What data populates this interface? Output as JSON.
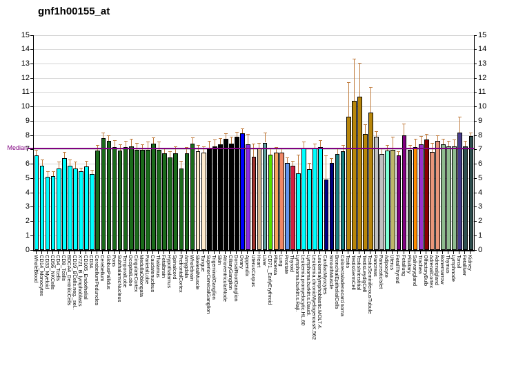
{
  "title": "gnf1h00155_at",
  "median_label": "Median",
  "chart_data": {
    "type": "bar",
    "title": "gnf1h00155_at",
    "xlabel": "",
    "ylabel": "",
    "ylim": [
      0,
      15
    ],
    "y_ticks": [
      0,
      1,
      2,
      3,
      4,
      5,
      6,
      7,
      8,
      9,
      10,
      11,
      12,
      13,
      14,
      15
    ],
    "grid": true,
    "legend": "none",
    "median": 7.1,
    "median_color": "#800080",
    "error_bar_color": "#c07c3e",
    "axis_color": "#000000",
    "grid_color": "#d4d4d4",
    "categories": [
      "WholeBlood",
      "CD14_Monocytes",
      "CD33_Myeloid",
      "CD56_NKCells",
      "CD4_Tcells",
      "CD8_Tcells",
      "BDCA4_DentriticCells",
      "CD19_BCells.neg._sel..",
      "X721_B_lymphoblasts",
      "CD105_Endothelial",
      "CD34.",
      "CerebellumPeduncles",
      "Cerebellum",
      "GlobusPallidus",
      "Pons",
      "SubthalamicNucleus",
      "TemporalLobe",
      "OccipitalLobe",
      "CingulateCortex",
      "MedullaOblongata",
      "ParietalLobe",
      "Caudatenucleus",
      "Thalamus",
      "Fetalbrain",
      "Hypothalamus",
      "Spinalcord",
      "PrefrontalCortex",
      "Amygdala",
      "Wholebrain",
      "SkeletalMuscle",
      "Tongue",
      "SuperiorCervicalGanglion",
      "TrigeminalGanglion",
      "Skin",
      "AtrioventricularNode",
      "CiliaryGanglion",
      "DorsalRootGanglion",
      "Ovary",
      "Appendix",
      "UterusCorpus",
      "Heart",
      "Liver",
      "CD71._EarlyErythroid",
      "Placenta",
      "Lung",
      "Prostate",
      "Thyroid",
      "Lymphoma.burkitt.s.Raji.",
      "Leukemia.promyelocytic.HL.60",
      "Lymphoma.burkitt.s.Daudi.",
      "Leukemia.chronicMyelogenousK.562",
      "Leukemialymphoblastic.MOLT.4.",
      "CardiacMyocytes",
      "SmoothMuscle",
      "BronchialEpithelialCells",
      "Colorectaladenocarcinoma",
      "Testis",
      "TestisGermCell",
      "TestisInterstitial",
      "TestisLeydigCell",
      "TestisSeminiferousTubule",
      "Pancreas",
      "PancreaticIslet",
      "Adipocyte",
      "Uterus",
      "FetalThyroid",
      "Fetallung",
      "Pituitary",
      "Salivarygland",
      "Trachea",
      "OlfactoryBulb",
      "AdrenalCortex",
      "Adrenalgland",
      "Bonemarrow",
      "Thymus",
      "Lymphnode",
      "Tonsil",
      "Fetalliver",
      "Kidney"
    ],
    "values": [
      6.6,
      5.9,
      5.1,
      5.15,
      5.7,
      6.4,
      5.9,
      5.7,
      5.5,
      5.85,
      5.3,
      6.95,
      7.8,
      7.6,
      7.2,
      6.95,
      7.2,
      7.25,
      7.0,
      7.0,
      7.0,
      7.45,
      7.0,
      6.75,
      6.45,
      6.75,
      5.7,
      6.75,
      7.45,
      6.9,
      6.8,
      7.15,
      7.25,
      7.4,
      7.75,
      7.45,
      7.9,
      8.15,
      7.4,
      6.5,
      7.1,
      7.5,
      6.65,
      6.8,
      6.8,
      6.1,
      5.9,
      5.35,
      7.15,
      5.65,
      7.1,
      7.2,
      4.9,
      6.1,
      6.7,
      6.9,
      9.3,
      10.4,
      10.7,
      8.1,
      9.6,
      7.9,
      6.7,
      6.95,
      7.0,
      6.6,
      8.0,
      7.0,
      7.2,
      7.4,
      7.7,
      6.85,
      7.6,
      7.4,
      7.25,
      7.25,
      8.2,
      7.25,
      7.95
    ],
    "errors_high": [
      7.0,
      6.3,
      5.5,
      5.5,
      6.15,
      6.85,
      6.3,
      6.15,
      5.75,
      6.2,
      5.6,
      7.35,
      8.2,
      8.0,
      7.65,
      7.4,
      7.6,
      7.75,
      7.5,
      7.4,
      7.55,
      7.85,
      7.55,
      7.15,
      6.9,
      7.25,
      6.2,
      7.2,
      7.85,
      7.35,
      7.25,
      7.6,
      7.7,
      7.8,
      8.15,
      7.9,
      8.25,
      8.5,
      8.1,
      7.45,
      7.5,
      8.2,
      7.1,
      7.2,
      7.15,
      6.45,
      6.2,
      6.65,
      7.55,
      6.1,
      7.45,
      7.65,
      6.6,
      6.4,
      7.1,
      7.35,
      11.7,
      13.35,
      13.05,
      8.8,
      11.4,
      8.3,
      7.1,
      7.35,
      7.9,
      6.9,
      8.85,
      7.35,
      7.75,
      7.95,
      8.1,
      7.5,
      8.0,
      7.75,
      7.6,
      7.7,
      9.3,
      7.6,
      8.2
    ],
    "colors": [
      "#00FFFF",
      "#00FFFF",
      "#00FFFF",
      "#00FFFF",
      "#00FFFF",
      "#00FFFF",
      "#00FFFF",
      "#00FFFF",
      "#00FFFF",
      "#00FFFF",
      "#00FFFF",
      "#1B6B1B",
      "#1B6B1B",
      "#1B6B1B",
      "#1B6B1B",
      "#1B6B1B",
      "#1B6B1B",
      "#1B6B1B",
      "#1B6B1B",
      "#1B6B1B",
      "#1B6B1B",
      "#1B6B1B",
      "#1B6B1B",
      "#1B6B1B",
      "#1B6B1B",
      "#1B6B1B",
      "#1B6B1B",
      "#1B6B1B",
      "#1B6B1B",
      "#FFEBCD",
      "#FFEBCD",
      "#000000",
      "#000000",
      "#000000",
      "#000000",
      "#000000",
      "#000000",
      "#0000FF",
      "#8A2BE2",
      "#A0362F",
      "#D2B48C",
      "#5F9EA0",
      "#55E000",
      "#F4A460",
      "#F08866",
      "#6495ED",
      "#D02040",
      "#00FFFF",
      "#00FFFF",
      "#00FFFF",
      "#00FFFF",
      "#00FFFF",
      "#000080",
      "#000080",
      "#188080",
      "#188080",
      "#B8860B",
      "#B8860B",
      "#B8860B",
      "#B8860B",
      "#B8860B",
      "#C0C0C0",
      "#C0C0C0",
      "#7FFFD4",
      "#BDB76B",
      "#800080",
      "#800080",
      "#4A5D4A",
      "#FF8C00",
      "#9932CC",
      "#8B0000",
      "#E9967A",
      "#E9967A",
      "#8FBC8F",
      "#8FBC8F",
      "#8FBC8F",
      "#483D8B",
      "#2F4F4F",
      "#2F4F4F"
    ]
  }
}
